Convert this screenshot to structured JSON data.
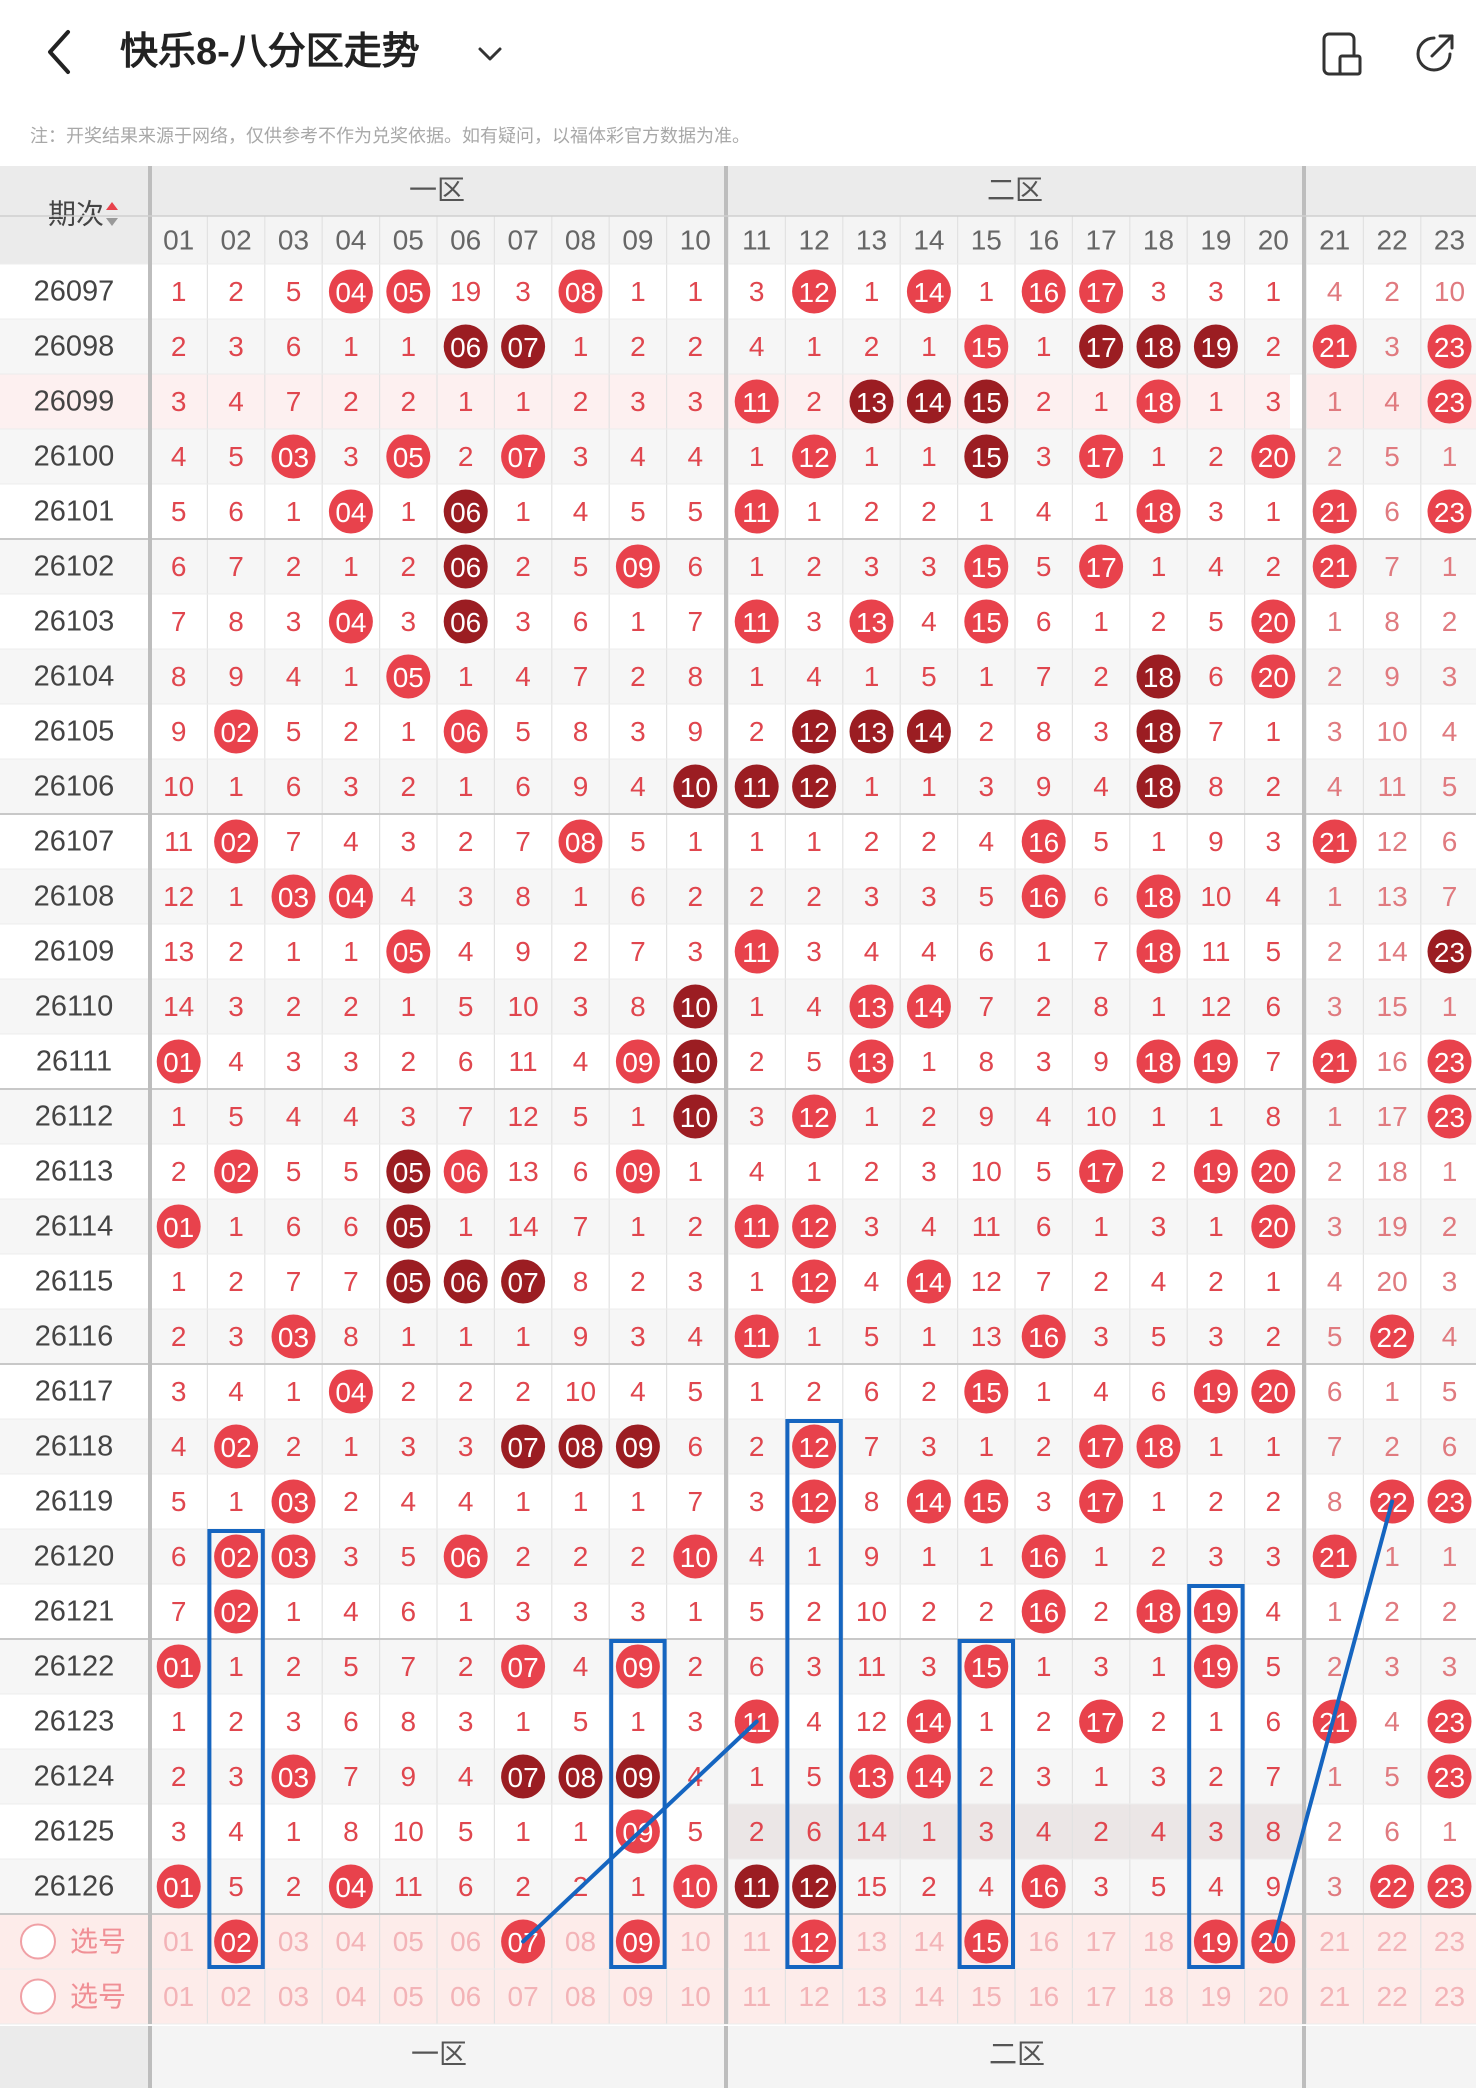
{
  "header": {
    "title": "快乐8-八分区走势",
    "back_icon": "chevron-left-icon",
    "dropdown_icon": "chevron-down-icon",
    "icons": [
      "layout-toggle-icon",
      "share-icon"
    ]
  },
  "notice": "注：开奖结果来源于网络，仅供参考不作为兑奖依据。如有疑问，以福体彩官方数据为准。",
  "table": {
    "period_header": "期次",
    "zones": [
      {
        "label": "一区",
        "cols": [
          "01",
          "02",
          "03",
          "04",
          "05",
          "06",
          "07",
          "08",
          "09",
          "10"
        ]
      },
      {
        "label": "二区",
        "cols": [
          "11",
          "12",
          "13",
          "14",
          "15",
          "16",
          "17",
          "18",
          "19",
          "20"
        ]
      },
      {
        "label": "",
        "cols": [
          "21",
          "22",
          "23"
        ]
      }
    ],
    "rows": [
      {
        "period": "26097",
        "cells": [
          "1",
          "2",
          "5",
          "04",
          "05",
          "19",
          "3",
          "08",
          "1",
          "1",
          "3",
          "12",
          "1",
          "14",
          "1",
          "16",
          "17",
          "3",
          "3",
          "1",
          "4",
          "2",
          "10"
        ]
      },
      {
        "period": "26098",
        "cells": [
          "2",
          "3",
          "6",
          "1",
          "1",
          "06",
          "07",
          "1",
          "2",
          "2",
          "4",
          "1",
          "2",
          "1",
          "15",
          "1",
          "17",
          "18",
          "19",
          "2",
          "21",
          "3",
          "23"
        ]
      },
      {
        "period": "26099",
        "cells": [
          "3",
          "4",
          "7",
          "2",
          "2",
          "1",
          "1",
          "2",
          "3",
          "3",
          "11",
          "2",
          "13",
          "14",
          "15",
          "2",
          "1",
          "18",
          "1",
          "3",
          "1",
          "4",
          "23"
        ]
      },
      {
        "period": "26100",
        "cells": [
          "4",
          "5",
          "03",
          "3",
          "05",
          "2",
          "07",
          "3",
          "4",
          "4",
          "1",
          "12",
          "1",
          "1",
          "15",
          "3",
          "17",
          "1",
          "2",
          "20",
          "2",
          "5",
          "1"
        ]
      },
      {
        "period": "26101",
        "cells": [
          "5",
          "6",
          "1",
          "04",
          "1",
          "06",
          "1",
          "4",
          "5",
          "5",
          "11",
          "1",
          "2",
          "2",
          "1",
          "4",
          "1",
          "18",
          "3",
          "1",
          "21",
          "6",
          "23"
        ]
      },
      {
        "period": "26102",
        "cells": [
          "6",
          "7",
          "2",
          "1",
          "2",
          "06",
          "2",
          "5",
          "09",
          "6",
          "1",
          "2",
          "3",
          "3",
          "15",
          "5",
          "17",
          "1",
          "4",
          "2",
          "21",
          "7",
          "1"
        ]
      },
      {
        "period": "26103",
        "cells": [
          "7",
          "8",
          "3",
          "04",
          "3",
          "06",
          "3",
          "6",
          "1",
          "7",
          "11",
          "3",
          "13",
          "4",
          "15",
          "6",
          "1",
          "2",
          "5",
          "20",
          "1",
          "8",
          "2"
        ]
      },
      {
        "period": "26104",
        "cells": [
          "8",
          "9",
          "4",
          "1",
          "05",
          "1",
          "4",
          "7",
          "2",
          "8",
          "1",
          "4",
          "1",
          "5",
          "1",
          "7",
          "2",
          "18",
          "6",
          "20",
          "2",
          "9",
          "3"
        ]
      },
      {
        "period": "26105",
        "cells": [
          "9",
          "02",
          "5",
          "2",
          "1",
          "06",
          "5",
          "8",
          "3",
          "9",
          "2",
          "12",
          "13",
          "14",
          "2",
          "8",
          "3",
          "18",
          "7",
          "1",
          "3",
          "10",
          "4"
        ]
      },
      {
        "period": "26106",
        "cells": [
          "10",
          "1",
          "6",
          "3",
          "2",
          "1",
          "6",
          "9",
          "4",
          "10",
          "11",
          "12",
          "1",
          "1",
          "3",
          "9",
          "4",
          "18",
          "8",
          "2",
          "4",
          "11",
          "5"
        ]
      },
      {
        "period": "26107",
        "cells": [
          "11",
          "02",
          "7",
          "4",
          "3",
          "2",
          "7",
          "08",
          "5",
          "1",
          "1",
          "1",
          "2",
          "2",
          "4",
          "16",
          "5",
          "1",
          "9",
          "3",
          "21",
          "12",
          "6"
        ]
      },
      {
        "period": "26108",
        "cells": [
          "12",
          "1",
          "03",
          "04",
          "4",
          "3",
          "8",
          "1",
          "6",
          "2",
          "2",
          "2",
          "3",
          "3",
          "5",
          "16",
          "6",
          "18",
          "10",
          "4",
          "1",
          "13",
          "7"
        ]
      },
      {
        "period": "26109",
        "cells": [
          "13",
          "2",
          "1",
          "1",
          "05",
          "4",
          "9",
          "2",
          "7",
          "3",
          "11",
          "3",
          "4",
          "4",
          "6",
          "1",
          "7",
          "18",
          "11",
          "5",
          "2",
          "14",
          "23"
        ]
      },
      {
        "period": "26110",
        "cells": [
          "14",
          "3",
          "2",
          "2",
          "1",
          "5",
          "10",
          "3",
          "8",
          "10",
          "1",
          "4",
          "13",
          "14",
          "7",
          "2",
          "8",
          "1",
          "12",
          "6",
          "3",
          "15",
          "1"
        ]
      },
      {
        "period": "26111",
        "cells": [
          "01",
          "4",
          "3",
          "3",
          "2",
          "6",
          "11",
          "4",
          "09",
          "10",
          "2",
          "5",
          "13",
          "1",
          "8",
          "3",
          "9",
          "18",
          "19",
          "7",
          "21",
          "16",
          "23"
        ]
      },
      {
        "period": "26112",
        "cells": [
          "1",
          "5",
          "4",
          "4",
          "3",
          "7",
          "12",
          "5",
          "1",
          "10",
          "3",
          "12",
          "1",
          "2",
          "9",
          "4",
          "10",
          "1",
          "1",
          "8",
          "1",
          "17",
          "23"
        ]
      },
      {
        "period": "26113",
        "cells": [
          "2",
          "02",
          "5",
          "5",
          "05",
          "06",
          "13",
          "6",
          "09",
          "1",
          "4",
          "1",
          "2",
          "3",
          "10",
          "5",
          "17",
          "2",
          "19",
          "20",
          "2",
          "18",
          "1"
        ]
      },
      {
        "period": "26114",
        "cells": [
          "01",
          "1",
          "6",
          "6",
          "05",
          "1",
          "14",
          "7",
          "1",
          "2",
          "11",
          "12",
          "3",
          "4",
          "11",
          "6",
          "1",
          "3",
          "1",
          "20",
          "3",
          "19",
          "2"
        ]
      },
      {
        "period": "26115",
        "cells": [
          "1",
          "2",
          "7",
          "7",
          "05",
          "06",
          "07",
          "8",
          "2",
          "3",
          "1",
          "12",
          "4",
          "14",
          "12",
          "7",
          "2",
          "4",
          "2",
          "1",
          "4",
          "20",
          "3"
        ]
      },
      {
        "period": "26116",
        "cells": [
          "2",
          "3",
          "03",
          "8",
          "1",
          "1",
          "1",
          "9",
          "3",
          "4",
          "11",
          "1",
          "5",
          "1",
          "13",
          "16",
          "3",
          "5",
          "3",
          "2",
          "5",
          "22",
          "4"
        ]
      },
      {
        "period": "26117",
        "cells": [
          "3",
          "4",
          "1",
          "04",
          "2",
          "2",
          "2",
          "10",
          "4",
          "5",
          "1",
          "2",
          "6",
          "2",
          "15",
          "1",
          "4",
          "6",
          "19",
          "20",
          "6",
          "1",
          "5"
        ]
      },
      {
        "period": "26118",
        "cells": [
          "4",
          "02",
          "2",
          "1",
          "3",
          "3",
          "07",
          "08",
          "09",
          "6",
          "2",
          "12",
          "7",
          "3",
          "1",
          "2",
          "17",
          "18",
          "1",
          "1",
          "7",
          "2",
          "6"
        ]
      },
      {
        "period": "26119",
        "cells": [
          "5",
          "1",
          "03",
          "2",
          "4",
          "4",
          "1",
          "1",
          "1",
          "7",
          "3",
          "12",
          "8",
          "14",
          "15",
          "3",
          "17",
          "1",
          "2",
          "2",
          "8",
          "22",
          "23"
        ]
      },
      {
        "period": "26120",
        "cells": [
          "6",
          "02",
          "03",
          "3",
          "5",
          "06",
          "2",
          "2",
          "2",
          "10",
          "4",
          "1",
          "9",
          "1",
          "1",
          "16",
          "1",
          "2",
          "3",
          "3",
          "21",
          "1",
          "1"
        ]
      },
      {
        "period": "26121",
        "cells": [
          "7",
          "02",
          "1",
          "4",
          "6",
          "1",
          "3",
          "3",
          "3",
          "1",
          "5",
          "2",
          "10",
          "2",
          "2",
          "16",
          "2",
          "18",
          "19",
          "4",
          "1",
          "2",
          "2"
        ]
      },
      {
        "period": "26122",
        "cells": [
          "01",
          "1",
          "2",
          "5",
          "7",
          "2",
          "07",
          "4",
          "09",
          "2",
          "6",
          "3",
          "11",
          "3",
          "15",
          "1",
          "3",
          "1",
          "19",
          "5",
          "2",
          "3",
          "3"
        ]
      },
      {
        "period": "26123",
        "cells": [
          "1",
          "2",
          "3",
          "6",
          "8",
          "3",
          "1",
          "5",
          "1",
          "3",
          "11",
          "4",
          "12",
          "14",
          "1",
          "2",
          "17",
          "2",
          "1",
          "6",
          "21",
          "4",
          "23"
        ]
      },
      {
        "period": "26124",
        "cells": [
          "2",
          "3",
          "03",
          "7",
          "9",
          "4",
          "07",
          "08",
          "09",
          "4",
          "1",
          "5",
          "13",
          "14",
          "2",
          "3",
          "1",
          "3",
          "2",
          "7",
          "1",
          "5",
          "23"
        ]
      },
      {
        "period": "26125",
        "cells": [
          "3",
          "4",
          "1",
          "8",
          "10",
          "5",
          "1",
          "1",
          "09",
          "5",
          "2",
          "6",
          "14",
          "1",
          "3",
          "4",
          "2",
          "4",
          "3",
          "8",
          "2",
          "6",
          "1"
        ]
      },
      {
        "period": "26126",
        "cells": [
          "01",
          "5",
          "2",
          "04",
          "11",
          "6",
          "2",
          "2",
          "1",
          "10",
          "11",
          "12",
          "15",
          "2",
          "4",
          "16",
          "3",
          "5",
          "4",
          "9",
          "3",
          "22",
          "23"
        ]
      }
    ],
    "selection_rows": [
      {
        "label": "选号",
        "selected": [
          "02",
          "07",
          "09",
          "12",
          "15",
          "19",
          "20"
        ]
      },
      {
        "label": "选号",
        "selected": []
      }
    ],
    "footer_zones": [
      "一区",
      "二区"
    ],
    "footer_dash": "-",
    "hits_dark": [
      "26098-06",
      "26098-07",
      "26098-17",
      "26098-18",
      "26098-19",
      "26099-13",
      "26099-14",
      "26099-15",
      "26100-15",
      "26101-06",
      "26102-06",
      "26103-06",
      "26104-18",
      "26105-12",
      "26105-13",
      "26105-14",
      "26105-18",
      "26106-10",
      "26106-11",
      "26106-12",
      "26106-18",
      "26109-23",
      "26110-10",
      "26111-10",
      "26112-10",
      "26113-05",
      "26114-05",
      "26115-05",
      "26115-06",
      "26115-07",
      "26118-07",
      "26118-08",
      "26118-09",
      "26124-07",
      "26124-08",
      "26124-09",
      "26126-11",
      "26126-12"
    ]
  },
  "colors": {
    "hit_red": "#e8424c",
    "hit_dark": "#9b1d22",
    "number_text": "#e0464e",
    "header_bg": "#ebebeb",
    "selection_bg": "#fdecea",
    "annotation_blue": "#1565c0"
  }
}
